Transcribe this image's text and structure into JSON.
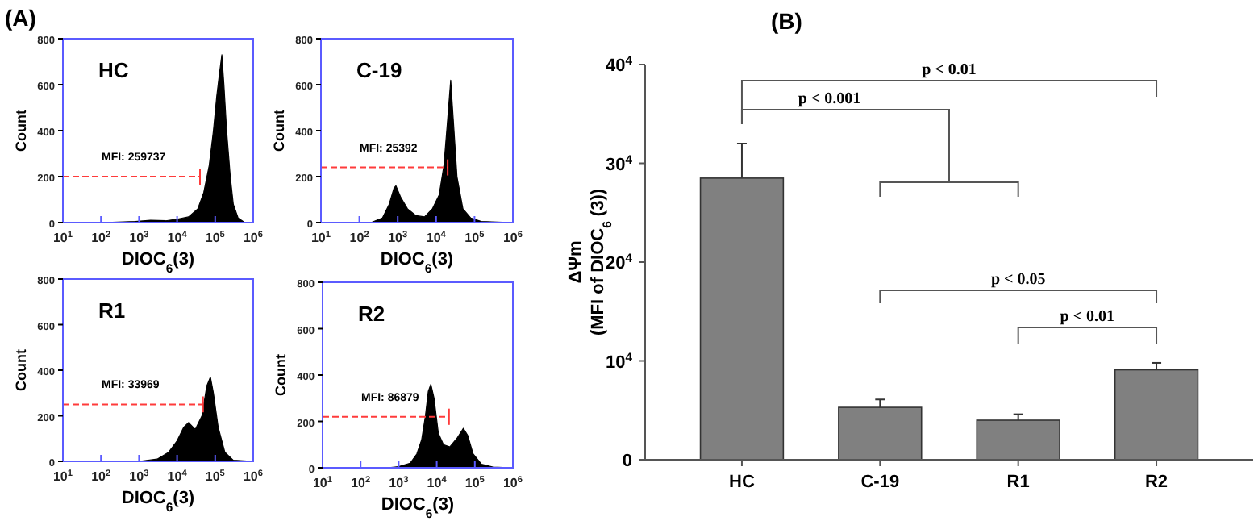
{
  "chart_data": [
    {
      "type": "area",
      "title": "HC",
      "xlabel": "DIOC$_{6}$(3)",
      "ylabel": "Count",
      "log": "x",
      "xlim": [
        10,
        1000000
      ],
      "xticks": [
        {
          "value": 10,
          "label": "10$^{1}$"
        },
        {
          "value": 100,
          "label": "10$^{2}$"
        },
        {
          "value": 1000,
          "label": "10$^{3}$"
        },
        {
          "value": 10000,
          "label": "10$^{4}$"
        },
        {
          "value": 100000,
          "label": "10$^{5}$"
        },
        {
          "value": 1000000,
          "label": "10$^{6}$"
        }
      ],
      "ylim": [
        0,
        800
      ],
      "yticks": [
        0,
        200,
        400,
        600,
        800
      ],
      "series": [
        {
          "type": "area",
          "color": "#000000",
          "x": [
            10,
            100,
            800,
            2000,
            5000,
            10000,
            20000,
            35000,
            50000,
            70000,
            90000,
            110000,
            130000,
            150000,
            170000,
            200000,
            250000,
            300000,
            400000,
            600000,
            1000000
          ],
          "values": [
            0,
            0,
            5,
            10,
            8,
            15,
            25,
            60,
            130,
            250,
            400,
            550,
            650,
            730,
            600,
            400,
            200,
            80,
            20,
            0,
            0
          ]
        },
        {
          "type": "line",
          "color": "#ff3b3b",
          "line_style": "dashed",
          "x": [
            10,
            40000
          ],
          "values": [
            200,
            200
          ],
          "errors": [
            null,
            35
          ]
        }
      ],
      "annotations": [
        "(A)",
        "MFI: 259737"
      ]
    },
    {
      "type": "area",
      "title": "C-19",
      "xlabel": "DIOC$_{6}$(3)",
      "ylabel": "Count",
      "log": "x",
      "xlim": [
        10,
        1000000
      ],
      "xticks": [
        {
          "value": 10,
          "label": "10$^{1}$"
        },
        {
          "value": 100,
          "label": "10$^{2}$"
        },
        {
          "value": 1000,
          "label": "10$^{3}$"
        },
        {
          "value": 10000,
          "label": "10$^{4}$"
        },
        {
          "value": 100000,
          "label": "10$^{5}$"
        },
        {
          "value": 1000000,
          "label": "10$^{6}$"
        }
      ],
      "ylim": [
        0,
        800
      ],
      "yticks": [
        0,
        200,
        400,
        600,
        800
      ],
      "series": [
        {
          "type": "area",
          "color": "#000000",
          "x": [
            10,
            200,
            400,
            600,
            800,
            900,
            1200,
            1800,
            3000,
            5000,
            8000,
            12000,
            16000,
            20000,
            24000,
            28000,
            35000,
            50000,
            80000,
            150000,
            1000000
          ],
          "values": [
            0,
            0,
            20,
            80,
            150,
            160,
            110,
            60,
            30,
            25,
            60,
            120,
            250,
            450,
            620,
            450,
            200,
            60,
            20,
            5,
            0
          ]
        },
        {
          "type": "line",
          "color": "#ff3b3b",
          "line_style": "dashed",
          "x": [
            10,
            20000
          ],
          "values": [
            240,
            240
          ],
          "errors": [
            null,
            35
          ]
        }
      ],
      "annotations": [
        "MFI: 25392"
      ]
    },
    {
      "type": "area",
      "title": "R1",
      "xlabel": "DIOC$_{6}$(3)",
      "ylabel": "Count",
      "log": "x",
      "xlim": [
        10,
        1000000
      ],
      "xticks": [
        {
          "value": 10,
          "label": "10$^{1}$"
        },
        {
          "value": 100,
          "label": "10$^{2}$"
        },
        {
          "value": 1000,
          "label": "10$^{3}$"
        },
        {
          "value": 10000,
          "label": "10$^{4}$"
        },
        {
          "value": 100000,
          "label": "10$^{5}$"
        },
        {
          "value": 1000000,
          "label": "10$^{6}$"
        }
      ],
      "ylim": [
        0,
        800
      ],
      "yticks": [
        0,
        200,
        400,
        600,
        800
      ],
      "series": [
        {
          "type": "area",
          "color": "#000000",
          "x": [
            10,
            1000,
            3000,
            6000,
            10000,
            15000,
            20000,
            30000,
            45000,
            60000,
            75000,
            90000,
            120000,
            180000,
            300000,
            1000000
          ],
          "values": [
            0,
            0,
            10,
            40,
            90,
            150,
            170,
            140,
            200,
            330,
            370,
            300,
            150,
            40,
            5,
            0
          ]
        },
        {
          "type": "line",
          "color": "#ff3b3b",
          "line_style": "dashed",
          "x": [
            10,
            48000
          ],
          "values": [
            250,
            250
          ],
          "errors": [
            null,
            35
          ]
        }
      ],
      "annotations": [
        "MFI: 33969"
      ]
    },
    {
      "type": "area",
      "title": "R2",
      "xlabel": "DIOC$_{6}$(3)",
      "ylabel": "Count",
      "log": "x",
      "xlim": [
        10,
        1000000
      ],
      "xticks": [
        {
          "value": 10,
          "label": "10$^{1}$"
        },
        {
          "value": 100,
          "label": "10$^{2}$"
        },
        {
          "value": 1000,
          "label": "10$^{3}$"
        },
        {
          "value": 10000,
          "label": "10$^{4}$"
        },
        {
          "value": 100000,
          "label": "10$^{5}$"
        },
        {
          "value": 1000000,
          "label": "10$^{6}$"
        }
      ],
      "ylim": [
        0,
        800
      ],
      "yticks": [
        0,
        200,
        400,
        600,
        800
      ],
      "series": [
        {
          "type": "area",
          "color": "#000000",
          "x": [
            10,
            500,
            1000,
            2000,
            3000,
            4000,
            5000,
            6000,
            7000,
            8500,
            11000,
            15000,
            22000,
            35000,
            50000,
            65000,
            90000,
            150000,
            300000,
            1000000
          ],
          "values": [
            0,
            0,
            5,
            20,
            60,
            120,
            220,
            330,
            360,
            300,
            150,
            100,
            90,
            130,
            170,
            140,
            60,
            15,
            3,
            0
          ]
        },
        {
          "type": "line",
          "color": "#ff3b3b",
          "line_style": "dashed",
          "x": [
            10,
            21000
          ],
          "values": [
            220,
            220
          ],
          "errors": [
            null,
            35
          ]
        }
      ],
      "annotations": [
        "MFI: 86879"
      ]
    },
    {
      "type": "bar",
      "ylabel": "ΔΨm\n(MFI of DIOC$_{6}$ (3))",
      "categories": [
        "HC",
        "C-19",
        "R1",
        "R2"
      ],
      "values": [
        28500,
        5300,
        4000,
        9100
      ],
      "color": "#808080",
      "errors": [
        [
          28500,
          32000
        ],
        [
          5300,
          6100
        ],
        [
          4000,
          4600
        ],
        [
          9100,
          9800
        ]
      ],
      "ylim": [
        0,
        40000
      ],
      "yticks": [
        0,
        {
          "value": 10000,
          "label": "10$^{4}$"
        },
        {
          "value": 20000,
          "label": "20$^{4}$"
        },
        {
          "value": 30000,
          "label": "30$^{4}$"
        },
        {
          "value": 40000,
          "label": "40$^{4}$"
        }
      ],
      "annotations": [
        "(B)",
        "p < 0.01",
        "p < 0.001",
        "p < 0.05",
        "p < 0.01"
      ]
    }
  ]
}
